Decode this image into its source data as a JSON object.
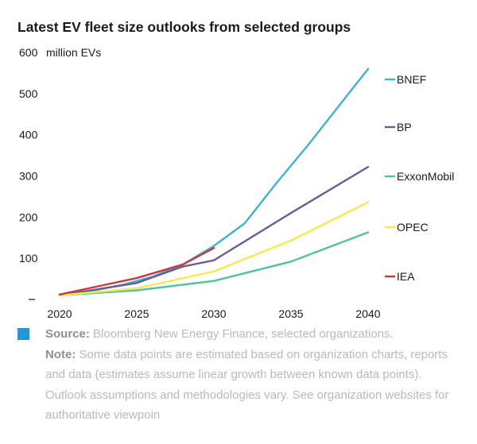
{
  "title": "Latest EV fleet size outlooks from selected groups",
  "chart_data": {
    "type": "line",
    "unit_label": "million EVs",
    "xlim": [
      2020,
      2040
    ],
    "ylim": [
      0,
      600
    ],
    "x_ticks": [
      2020,
      2025,
      2030,
      2035,
      2040
    ],
    "y_ticks": [
      100,
      200,
      300,
      400,
      500,
      600
    ],
    "grid": false,
    "legend_position": "right",
    "series": [
      {
        "name": "BNEF",
        "color": "#3eb3cf",
        "x": [
          2020,
          2022,
          2024,
          2026,
          2028,
          2030,
          2032,
          2034,
          2036,
          2038,
          2040
        ],
        "y": [
          10,
          20,
          35,
          55,
          85,
          130,
          185,
          280,
          370,
          465,
          560
        ]
      },
      {
        "name": "BP",
        "color": "#6b5b95",
        "x": [
          2020,
          2025,
          2028,
          2030,
          2035,
          2040
        ],
        "y": [
          10,
          40,
          80,
          95,
          210,
          322
        ]
      },
      {
        "name": "ExxonMobil",
        "color": "#4ec49d",
        "x": [
          2020,
          2025,
          2030,
          2035,
          2040
        ],
        "y": [
          10,
          22,
          45,
          92,
          163
        ]
      },
      {
        "name": "OPEC",
        "color": "#f3ea4f",
        "x": [
          2020,
          2025,
          2030,
          2035,
          2040
        ],
        "y": [
          10,
          27,
          68,
          143,
          236
        ]
      },
      {
        "name": "IEA",
        "color": "#c8393e",
        "x": [
          2020,
          2022,
          2025,
          2028,
          2030
        ],
        "y": [
          12,
          28,
          52,
          85,
          125
        ]
      }
    ]
  },
  "footer": {
    "square_color": "#2596d1",
    "source_label": "Source:",
    "source_text": " Bloomberg New Energy Finance, selected organizations.",
    "note_label": "Note:",
    "note_text": " Some data points are estimated based on organization charts, reports and data (estimates assume linear growth between known data points). Outlook assumptions and methodologies vary. See organization websites for authoritative viewpoin"
  }
}
